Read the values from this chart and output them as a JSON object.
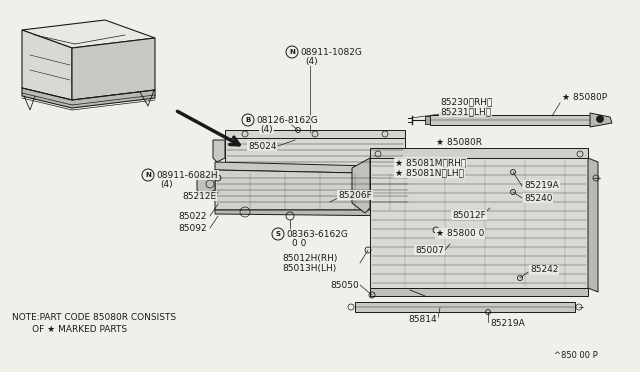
{
  "background_color": "#f0f0eb",
  "page_code": "^850 00 P",
  "note_line1": "NOTE:PART CODE 85080R CONSISTS",
  "note_line2": "       OF ★ MARKED PARTS",
  "dark": "#1a1a1a",
  "gray_fill": "#e0e0dc",
  "gray_fill2": "#d4d4d0",
  "white": "#f5f5f2"
}
